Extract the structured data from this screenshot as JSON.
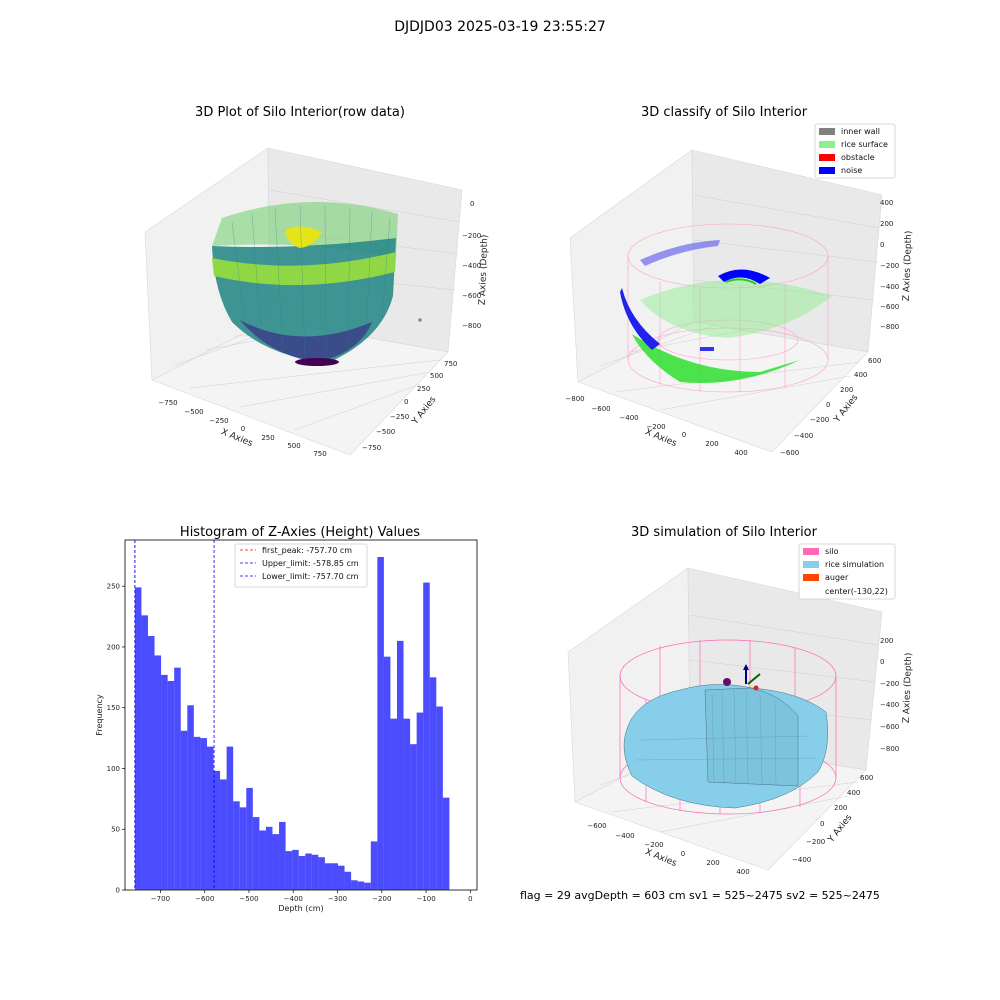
{
  "figure_title": "DJDJD03 2025-03-19 23:55:27",
  "panels": {
    "raw": {
      "title": "3D Plot of Silo Interior(row data)",
      "x_label": "X Axies",
      "y_label": "Y Axies",
      "z_label": "Z Axies (Depth)",
      "x_ticks": [
        "−750",
        "−500",
        "−250",
        "0",
        "250",
        "500",
        "750"
      ],
      "y_ticks": [
        "−750",
        "−500",
        "−250",
        "0",
        "250",
        "500",
        "750"
      ],
      "z_ticks": [
        "0",
        "−200",
        "−400",
        "−600",
        "−800"
      ]
    },
    "classify": {
      "title": "3D classify of Silo Interior",
      "x_label": "X Axies",
      "y_label": "Y Axies",
      "z_label": "Z Axies (Depth)",
      "x_ticks": [
        "−800",
        "−600",
        "−400",
        "−200",
        "0",
        "200",
        "400"
      ],
      "y_ticks": [
        "−600",
        "−400",
        "−200",
        "0",
        "200",
        "400",
        "600"
      ],
      "z_ticks": [
        "400",
        "200",
        "0",
        "−200",
        "−400",
        "−600",
        "−800"
      ],
      "legend": [
        {
          "label": "inner wall",
          "color": "#808080"
        },
        {
          "label": "rice surface",
          "color": "#90ee90"
        },
        {
          "label": "obstacle",
          "color": "#ff0000"
        },
        {
          "label": "noise",
          "color": "#0000ff"
        }
      ]
    },
    "simulation": {
      "title": "3D simulation of Silo Interior",
      "x_label": "X Axies",
      "y_label": "Y Axies",
      "z_label": "Z Axies (Depth)",
      "x_ticks": [
        "−600",
        "−400",
        "−200",
        "0",
        "200",
        "400"
      ],
      "y_ticks": [
        "−400",
        "−200",
        "0",
        "200",
        "400",
        "600"
      ],
      "z_ticks": [
        "200",
        "0",
        "−200",
        "−400",
        "−600",
        "−800"
      ],
      "legend": [
        {
          "label": "silo",
          "color": "#ff69b4"
        },
        {
          "label": "rice simulation",
          "color": "#87ceeb"
        },
        {
          "label": "auger",
          "color": "#ff4500"
        },
        {
          "label": "center(-130,22)",
          "color": ""
        }
      ]
    }
  },
  "chart_data": {
    "type": "bar",
    "title": "Histogram of Z-Axies (Height) Values",
    "xlabel": "Depth (cm)",
    "ylabel": "Frequency",
    "xlim": [
      -780,
      15
    ],
    "ylim": [
      0,
      288
    ],
    "x_ticks": [
      -700,
      -600,
      -500,
      -400,
      -300,
      -200,
      -100,
      0
    ],
    "x_tick_labels": [
      "−700",
      "−600",
      "−500",
      "−400",
      "−300",
      "−200",
      "−100",
      "0"
    ],
    "y_ticks": [
      0,
      50,
      100,
      150,
      200,
      250
    ],
    "bar_color": "#0000ff",
    "bin_start": -757.7,
    "bin_width": 14.8,
    "values": [
      249,
      226,
      209,
      193,
      177,
      172,
      183,
      131,
      152,
      126,
      125,
      118,
      98,
      91,
      118,
      73,
      68,
      84,
      60,
      49,
      52,
      46,
      56,
      32,
      33,
      28,
      30,
      29,
      27,
      22,
      22,
      20,
      15,
      8,
      7,
      6,
      40,
      274,
      192,
      141,
      205,
      141,
      120,
      146,
      253,
      175,
      151,
      76
    ],
    "reference_lines": [
      {
        "label": "first_peak: -757.70 cm",
        "x": -757.7,
        "color": "#ff0000"
      },
      {
        "label": "Upper_limit: -578.85 cm",
        "x": -578.85,
        "color": "#0000ff"
      },
      {
        "label": "Lower_limit: -757.70 cm",
        "x": -757.7,
        "color": "#0000ff"
      }
    ],
    "legend_position": "top-center"
  },
  "status": {
    "text": "flag = 29  avgDepth = 603 cm  sv1 = 525~2475  sv2 = 525~2475"
  }
}
